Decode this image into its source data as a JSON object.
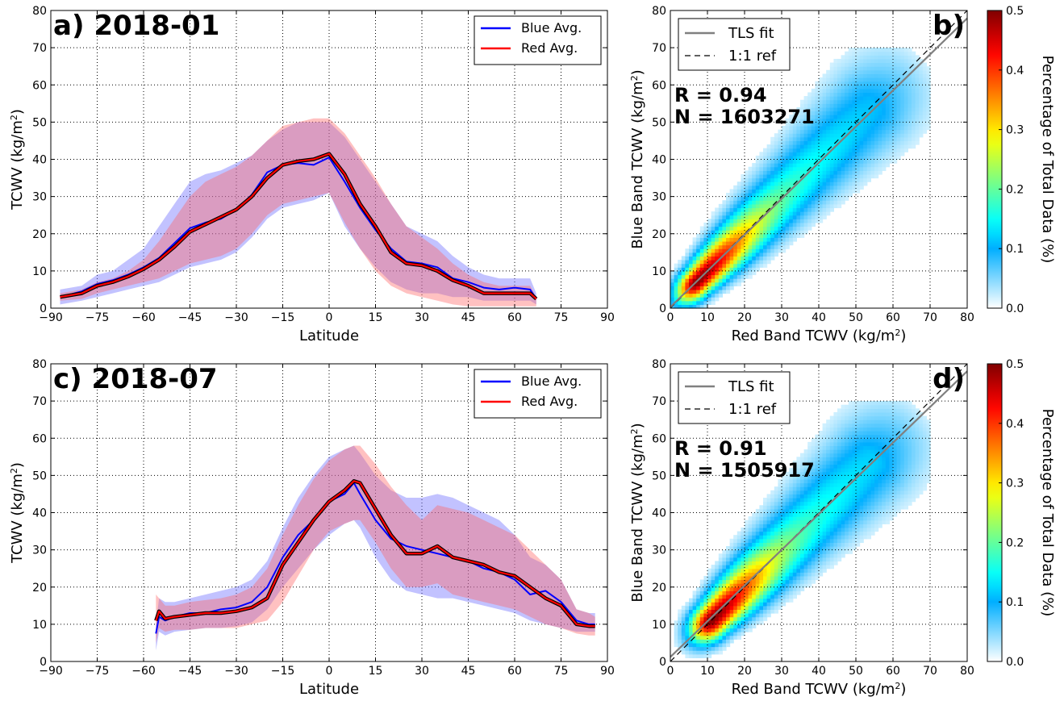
{
  "chart_data": [
    {
      "id": "a",
      "type": "line",
      "title": "a) 2018-01",
      "xlabel": "Latitude",
      "ylabel": "TCWV (kg/m²)",
      "ylabel_base": "TCWV (kg/m",
      "ylabel_sup": "2",
      "ylabel_end": ")",
      "xlim": [
        -90,
        90
      ],
      "ylim": [
        0,
        80
      ],
      "xticks": [
        "−90",
        "−75",
        "−60",
        "−45",
        "−30",
        "−15",
        "0",
        "15",
        "30",
        "45",
        "60",
        "75",
        "90"
      ],
      "yticks": [
        "0",
        "10",
        "20",
        "30",
        "40",
        "50",
        "60",
        "70",
        "80"
      ],
      "grid": true,
      "legend": {
        "position": "top-right",
        "entries": [
          "Blue Avg.",
          "Red Avg."
        ]
      },
      "x": [
        -87,
        -80,
        -75,
        -70,
        -65,
        -60,
        -55,
        -50,
        -45,
        -40,
        -35,
        -30,
        -25,
        -20,
        -15,
        -10,
        -5,
        0,
        5,
        10,
        15,
        20,
        25,
        30,
        35,
        40,
        45,
        50,
        55,
        60,
        65,
        67
      ],
      "series": [
        {
          "name": "Blue Avg.",
          "color": "#0000ff",
          "values": [
            3,
            4.5,
            6.5,
            7.5,
            9,
            11,
            13.5,
            17.5,
            21.5,
            23,
            24,
            26.5,
            30.5,
            36.5,
            38.5,
            39,
            38.5,
            40.5,
            34,
            27,
            21,
            16,
            12.5,
            12,
            11,
            8,
            7,
            5.5,
            5,
            5.5,
            5,
            2.5
          ],
          "upper": [
            5,
            6,
            9,
            10,
            13,
            16,
            22,
            28,
            34,
            36,
            37,
            39,
            41,
            45,
            48,
            50,
            50,
            50,
            46,
            40,
            34,
            28,
            22,
            20,
            18,
            14,
            11,
            9,
            8,
            8,
            8,
            4
          ],
          "lower": [
            1,
            2,
            3,
            4,
            5,
            6,
            7,
            9,
            11,
            12,
            13,
            15,
            19,
            24,
            27,
            28,
            29,
            31,
            22,
            16,
            11,
            7,
            5,
            4,
            4,
            3,
            3,
            2,
            2,
            2,
            2,
            1
          ]
        },
        {
          "name": "Red Avg.",
          "color": "#ff0000",
          "values": [
            3,
            4,
            6,
            7,
            8.5,
            10.5,
            13,
            16.5,
            20.5,
            22.5,
            24.5,
            26.5,
            30,
            35,
            38.5,
            39.5,
            40,
            41.5,
            36,
            28,
            22,
            15,
            12,
            11.5,
            10,
            7.5,
            6,
            4,
            4,
            4,
            4,
            2.5
          ],
          "upper": [
            4,
            5,
            7,
            8,
            10,
            13,
            18,
            24,
            30,
            34,
            36,
            38,
            41,
            45,
            49,
            50,
            51,
            51,
            47,
            41,
            35,
            28,
            22,
            19,
            16,
            12,
            9,
            7,
            6,
            6,
            6,
            3
          ],
          "lower": [
            2,
            2.5,
            4,
            5,
            6,
            7,
            8,
            10,
            12,
            13,
            14,
            16,
            20,
            25,
            28,
            29,
            30,
            31,
            23,
            16,
            10,
            6,
            4,
            3,
            2,
            1,
            0.5,
            0.5,
            0.5,
            0.5,
            0.5,
            0.5
          ]
        }
      ]
    },
    {
      "id": "b",
      "type": "heatmap",
      "title": "b)",
      "xlabel": "Red Band TCWV (kg/m²)",
      "xlabel_base": "Red Band TCWV (kg/m",
      "xlabel_sup": "2",
      "xlabel_end": ")",
      "ylabel": "Blue Band TCWV (kg/m²)",
      "ylabel_base": "Blue Band TCWV (kg/m",
      "ylabel_sup": "2",
      "ylabel_end": ")",
      "xlim": [
        0,
        80
      ],
      "ylim": [
        0,
        80
      ],
      "xticks": [
        "0",
        "10",
        "20",
        "30",
        "40",
        "50",
        "60",
        "70",
        "80"
      ],
      "yticks": [
        "0",
        "10",
        "20",
        "30",
        "40",
        "50",
        "60",
        "70",
        "80"
      ],
      "grid": true,
      "stats": {
        "R_text": "R = 0.94",
        "N_text": "N = 1603271"
      },
      "legend": {
        "position": "top-left",
        "entries": [
          "TLS fit",
          "1:1 ref"
        ]
      },
      "tls_fit": {
        "slope": 0.97,
        "intercept": 0.3
      },
      "density": {
        "center_x": 7,
        "center_y": 7,
        "spread_along": 14,
        "spread_across": 2.4,
        "tail_extent": 65,
        "peak": 0.5
      },
      "colorbar": {
        "label": "Percentage of Total Data (%)",
        "ticks": [
          "0.0",
          "0.1",
          "0.2",
          "0.3",
          "0.4",
          "0.5"
        ],
        "range": [
          0,
          0.5
        ]
      }
    },
    {
      "id": "c",
      "type": "line",
      "title": "c) 2018-07",
      "xlabel": "Latitude",
      "ylabel": "TCWV (kg/m²)",
      "ylabel_base": "TCWV (kg/m",
      "ylabel_sup": "2",
      "ylabel_end": ")",
      "xlim": [
        -90,
        90
      ],
      "ylim": [
        0,
        80
      ],
      "xticks": [
        "−90",
        "−75",
        "−60",
        "−45",
        "−30",
        "−15",
        "0",
        "15",
        "30",
        "45",
        "60",
        "75",
        "90"
      ],
      "yticks": [
        "0",
        "10",
        "20",
        "30",
        "40",
        "50",
        "60",
        "70",
        "80"
      ],
      "grid": true,
      "legend": {
        "position": "top-right",
        "entries": [
          "Blue Avg.",
          "Red Avg."
        ]
      },
      "x": [
        -56,
        -55,
        -53,
        -50,
        -45,
        -40,
        -35,
        -30,
        -25,
        -20,
        -15,
        -10,
        -5,
        0,
        5,
        8,
        10,
        15,
        20,
        25,
        30,
        35,
        40,
        45,
        50,
        55,
        60,
        65,
        70,
        75,
        80,
        84,
        86
      ],
      "series": [
        {
          "name": "Blue Avg.",
          "color": "#0000ff",
          "values": [
            7.5,
            12,
            11,
            12,
            13,
            13,
            14,
            14.5,
            16,
            20,
            28,
            34,
            38,
            43,
            45,
            48,
            45,
            38,
            33,
            31,
            30,
            29,
            28,
            27,
            25,
            24,
            22,
            18,
            19,
            16,
            11,
            10,
            10
          ],
          "upper": [
            10,
            17,
            16,
            16,
            17,
            18,
            19,
            20,
            22,
            27,
            36,
            44,
            50,
            55,
            57,
            58,
            56,
            50,
            46,
            44,
            44,
            45,
            44,
            42,
            40,
            38,
            34,
            28,
            26,
            22,
            14,
            13,
            13
          ],
          "lower": [
            3,
            8,
            7,
            8,
            8.5,
            9,
            9,
            9.5,
            10.5,
            14,
            20,
            25,
            30,
            34,
            37,
            38,
            36,
            28,
            22,
            19,
            18,
            17,
            17,
            16,
            15,
            14,
            13,
            11,
            10,
            9,
            8,
            8,
            8
          ]
        },
        {
          "name": "Red Avg.",
          "color": "#ff0000",
          "values": [
            11,
            13.5,
            11.5,
            12,
            12.5,
            13,
            13,
            13.5,
            14.5,
            17,
            26,
            32,
            38,
            43,
            46,
            48.5,
            48,
            41,
            34,
            29,
            29,
            31,
            28,
            27,
            26,
            24,
            23,
            20,
            17,
            15,
            10,
            9.5,
            9.5
          ],
          "upper": [
            18,
            17,
            15,
            15,
            16,
            16.5,
            17,
            18,
            20,
            25,
            34,
            42,
            49,
            54,
            57,
            58,
            58,
            53,
            47,
            42,
            38,
            42,
            41,
            40,
            38,
            36,
            34,
            30,
            26,
            22,
            14,
            13,
            12
          ],
          "lower": [
            5,
            9,
            8,
            8.5,
            8.5,
            9,
            9,
            9,
            10,
            11,
            16,
            23,
            30,
            35,
            37,
            38,
            38,
            32,
            25,
            20,
            20,
            21,
            18,
            17,
            16,
            15,
            14,
            12,
            10,
            9,
            7.5,
            7,
            7
          ]
        }
      ]
    },
    {
      "id": "d",
      "type": "heatmap",
      "title": "d)",
      "xlabel": "Red Band TCWV (kg/m²)",
      "xlabel_base": "Red Band TCWV (kg/m",
      "xlabel_sup": "2",
      "xlabel_end": ")",
      "ylabel": "Blue Band TCWV (kg/m²)",
      "ylabel_base": "Blue Band TCWV (kg/m",
      "ylabel_sup": "2",
      "ylabel_end": ")",
      "xlim": [
        0,
        80
      ],
      "ylim": [
        0,
        80
      ],
      "xticks": [
        "0",
        "10",
        "20",
        "30",
        "40",
        "50",
        "60",
        "70",
        "80"
      ],
      "yticks": [
        "0",
        "10",
        "20",
        "30",
        "40",
        "50",
        "60",
        "70",
        "80"
      ],
      "grid": true,
      "stats": {
        "R_text": "R = 0.91",
        "N_text": "N = 1505917"
      },
      "legend": {
        "position": "top-left",
        "entries": [
          "TLS fit",
          "1:1 ref"
        ]
      },
      "tls_fit": {
        "slope": 0.96,
        "intercept": 1.2
      },
      "density": {
        "center_x": 11,
        "center_y": 11,
        "spread_along": 14,
        "spread_across": 2.8,
        "tail_extent": 65,
        "peak": 0.5
      },
      "colorbar": {
        "label": "Percentage of Total Data (%)",
        "ticks": [
          "0.0",
          "0.1",
          "0.2",
          "0.3",
          "0.4",
          "0.5"
        ],
        "range": [
          0,
          0.5
        ]
      }
    }
  ]
}
